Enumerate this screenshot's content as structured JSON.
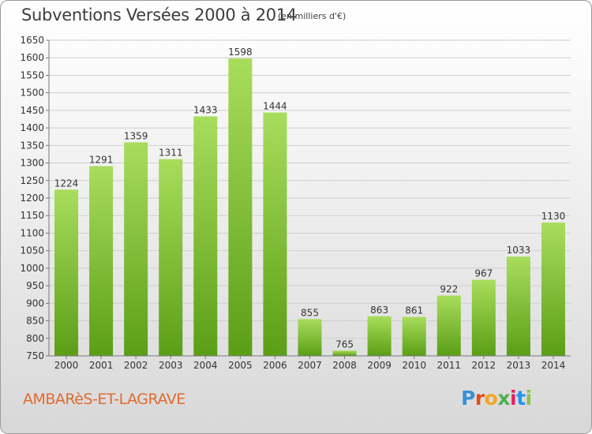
{
  "header": {
    "title": "Subventions Versées 2000 à 2014",
    "subtitle": "(en milliers d'€)"
  },
  "footer": {
    "commune": "AMBARèS-ET-LAGRAVE",
    "logo_text": "Proxiti",
    "logo_colors": [
      "#3a8fd6",
      "#e64a19",
      "#f5a623",
      "#4caf50",
      "#e91e63",
      "#2196f3",
      "#8bc34a"
    ]
  },
  "colors": {
    "bar_light": "#a8dd5c",
    "bar_dark": "#5b9e16",
    "grid": "#cfcfcf",
    "axis": "#777777",
    "text": "#333333"
  },
  "chart_data": {
    "type": "bar",
    "categories": [
      "2000",
      "2001",
      "2002",
      "2003",
      "2004",
      "2005",
      "2006",
      "2007",
      "2008",
      "2009",
      "2010",
      "2011",
      "2012",
      "2013",
      "2014"
    ],
    "values": [
      1224,
      1291,
      1359,
      1311,
      1433,
      1598,
      1444,
      855,
      765,
      863,
      861,
      922,
      967,
      1033,
      1130
    ],
    "title": "Subventions Versées 2000 à 2014",
    "xlabel": "",
    "ylabel": "",
    "ylim": [
      750,
      1650
    ],
    "yticks": [
      750,
      800,
      850,
      900,
      950,
      1000,
      1050,
      1100,
      1150,
      1200,
      1250,
      1300,
      1350,
      1400,
      1450,
      1500,
      1550,
      1600,
      1650
    ],
    "grid": true,
    "legend": "none"
  }
}
